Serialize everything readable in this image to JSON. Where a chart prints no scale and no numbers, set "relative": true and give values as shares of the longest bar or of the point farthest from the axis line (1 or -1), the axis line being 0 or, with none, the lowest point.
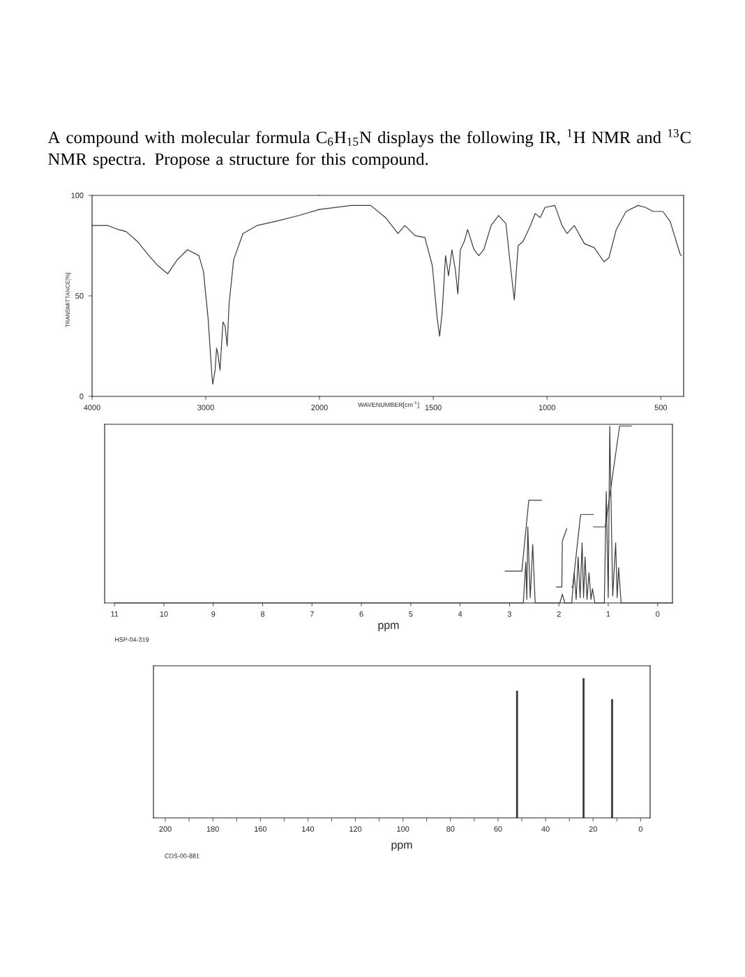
{
  "chart_data": [
    {
      "type": "line",
      "title": "A compound with molecular formula C$_{6}$H$_{15}$N displays the following IR, $^{1}$H NMR and $^{13}$C NMR spectra. Propose a structure for this compound.",
      "ylabel": "TRANSMITTANCE[%]",
      "xlim": [
        4000,
        2000
      ],
      "xticks": [
        4000,
        3000,
        2000
      ],
      "ylim": [
        0,
        100
      ],
      "yticks": [
        0,
        50,
        100
      ],
      "x": [
        4000,
        3860,
        3770,
        3700,
        3600,
        3500,
        3420,
        3335,
        3250,
        3160,
        3060,
        3020,
        2980,
        2947,
        2939,
        2918,
        2905,
        2893,
        2875,
        2849,
        2830,
        2812,
        2795,
        2755,
        2673,
        2550,
        2390,
        2180,
        2000
      ],
      "series": [
        {
          "color": "#3a3a3a",
          "values": [
            85,
            85,
            83,
            82,
            77,
            70,
            65,
            61,
            68,
            73,
            70,
            62,
            39,
            11,
            6,
            13,
            24,
            21,
            13,
            37,
            35,
            25,
            46,
            68,
            81,
            85,
            87,
            90,
            93
          ]
        }
      ]
    },
    {
      "type": "line",
      "xlabel": "WAVENUMBER[cm$^{-1}$]",
      "xlim": [
        2000,
        400
      ],
      "xticks": [
        1500,
        1000,
        500
      ],
      "ylim": [
        0,
        100
      ],
      "tick_labels": "x",
      "x": [
        2000,
        1860,
        1775,
        1710,
        1655,
        1625,
        1580,
        1537,
        1504,
        1483,
        1472,
        1461,
        1446,
        1433,
        1418,
        1403,
        1392,
        1381,
        1364,
        1349,
        1321,
        1300,
        1278,
        1246,
        1213,
        1181,
        1159,
        1144,
        1127,
        1106,
        1073,
        1052,
        1030,
        1009,
        966,
        934,
        912,
        880,
        836,
        793,
        750,
        728,
        696,
        653,
        600,
        567,
        534,
        491,
        459,
        416,
        410
      ],
      "series": [
        {
          "color": "#3a3a3a",
          "values": [
            93,
            95,
            95,
            89,
            81,
            85,
            80,
            79,
            65,
            39,
            30,
            42,
            70,
            60,
            73,
            63,
            51,
            73,
            77,
            83,
            73,
            70,
            73,
            85,
            90,
            86,
            63,
            48,
            75,
            77,
            85,
            91,
            89,
            94,
            95,
            85,
            81,
            85,
            76,
            74,
            67,
            69,
            83,
            92,
            95,
            94,
            92,
            92,
            87,
            71,
            70
          ]
        }
      ]
    },
    {
      "type": "line",
      "relative": true,
      "xlabel": "ppm",
      "xlim": [
        11.2,
        -0.3
      ],
      "xticks": [
        11,
        10,
        9,
        8,
        7,
        6,
        5,
        4,
        3,
        2,
        1,
        0
      ],
      "annotations": [
        "HSP-04-319"
      ],
      "series": [
        {
          "color": "#3a3a3a",
          "x": [
            11.0,
            3.0,
            2.72,
            2.67,
            2.65,
            2.63,
            2.58,
            2.53,
            2.48,
            1.98,
            1.93,
            1.88,
            1.74,
            1.69,
            1.65,
            1.61,
            1.57,
            1.53,
            1.5,
            1.47,
            1.43,
            1.39,
            1.35,
            1.32,
            1.27,
            1.08,
            1.04,
            1.0,
            0.97,
            0.91,
            0.85,
            0.82,
            0.79,
            0.74,
            -0.3
          ],
          "values": [
            0,
            0,
            0,
            0.23,
            0.02,
            0.43,
            0.03,
            0.33,
            0,
            0,
            0.05,
            0,
            0,
            0.17,
            0.02,
            0.26,
            0.03,
            0.34,
            0.03,
            0.26,
            0.02,
            0.17,
            0.02,
            0.08,
            0,
            0,
            0.63,
            0.03,
            1.0,
            0.04,
            0.34,
            0.03,
            0.2,
            0,
            0
          ]
        },
        {
          "color": "#3a3a3a",
          "x": [
            3.09,
            2.75,
            2.61,
            2.35
          ],
          "values": [
            0.18,
            0.18,
            0.58,
            0.58
          ]
        },
        {
          "color": "#3a3a3a",
          "x": [
            2.05,
            1.94,
            1.93,
            1.84
          ],
          "values": [
            0.09,
            0.09,
            0.35,
            0.42
          ]
        },
        {
          "color": "#3a3a3a",
          "x": [
            1.74,
            1.72,
            1.56,
            1.3
          ],
          "values": [
            0.09,
            0.09,
            0.5,
            0.5
          ]
        },
        {
          "color": "#3a3a3a",
          "x": [
            1.3,
            1.06,
            0.77,
            0.53
          ],
          "values": [
            0.43,
            0.43,
            1.0,
            1.0
          ]
        }
      ]
    },
    {
      "type": "bar",
      "relative": true,
      "xlabel": "ppm",
      "xlim": [
        205,
        -4
      ],
      "xticks": [
        200,
        {
          "value": 190,
          "label": null
        },
        180,
        {
          "value": 170,
          "label": null
        },
        160,
        {
          "value": 150,
          "label": null
        },
        140,
        {
          "value": 130,
          "label": null
        },
        120,
        {
          "value": 110,
          "label": null
        },
        100,
        {
          "value": 90,
          "label": null
        },
        80,
        {
          "value": 70,
          "label": null
        },
        60,
        {
          "value": 50,
          "label": null
        },
        40,
        {
          "value": 30,
          "label": null
        },
        20,
        {
          "value": 10,
          "label": null
        },
        0
      ],
      "annotations": [
        "CDS-00-881"
      ],
      "x": [
        52,
        24,
        12
      ],
      "series": [
        {
          "color": "#2a2a2a",
          "values": [
            0.91,
            1.0,
            0.85
          ]
        }
      ]
    }
  ]
}
